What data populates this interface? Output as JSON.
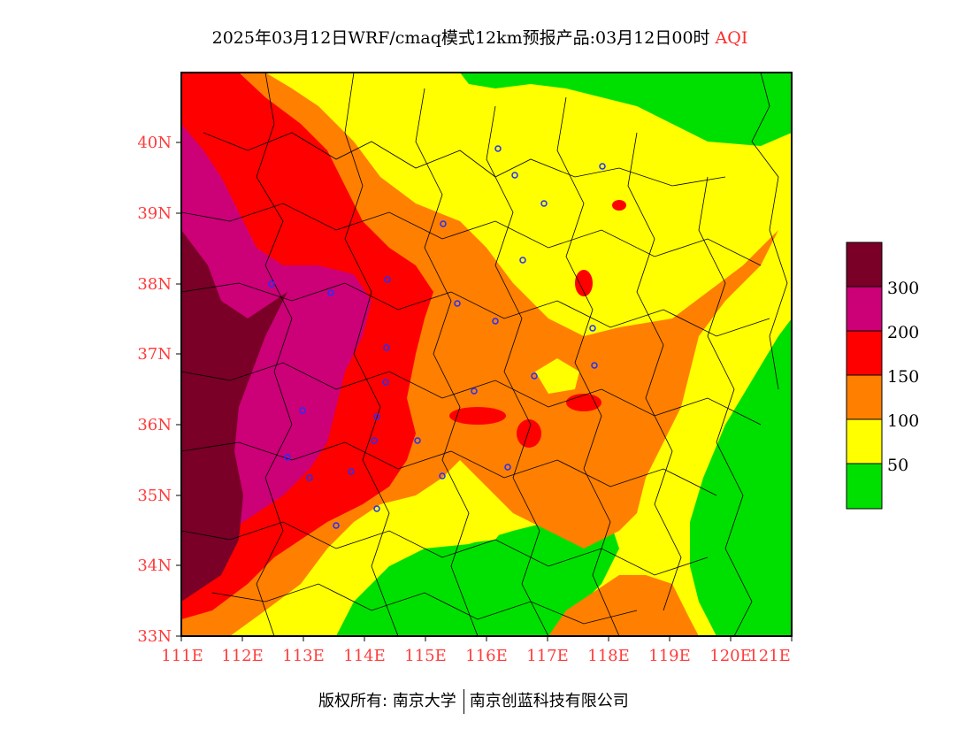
{
  "title": {
    "main": "2025年03月12日WRF/cmaq模式12km预报产品:03月12日00时",
    "variable": "AQI"
  },
  "axes": {
    "lat_ticks": [
      "40N",
      "39N",
      "38N",
      "37N",
      "36N",
      "35N",
      "34N",
      "33N"
    ],
    "lon_ticks": [
      "111E",
      "112E",
      "113E",
      "114E",
      "115E",
      "116E",
      "117E",
      "118E",
      "119E",
      "120E",
      "121E"
    ],
    "tick_color": "#ff3b3b"
  },
  "legend": {
    "labels": [
      "300",
      "200",
      "150",
      "100",
      "50"
    ],
    "colors": {
      "c300": "#7a0028",
      "c200": "#cc0077",
      "c150": "#ff0000",
      "c100": "#ff7f00",
      "c50": "#ffff00",
      "c0": "#00e000"
    }
  },
  "footer": {
    "copyright": "版权所有: 南京大学",
    "company": "南京创蓝科技有限公司"
  }
}
